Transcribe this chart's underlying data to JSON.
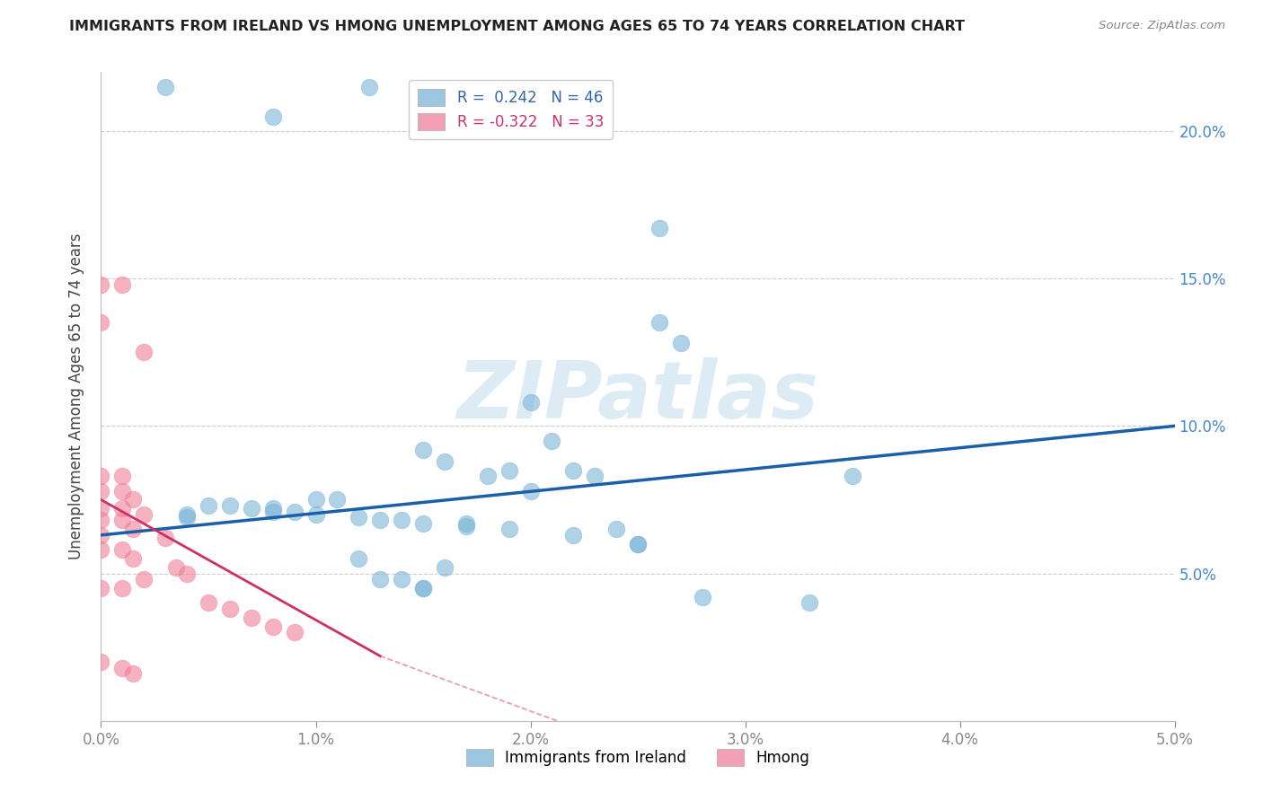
{
  "title": "IMMIGRANTS FROM IRELAND VS HMONG UNEMPLOYMENT AMONG AGES 65 TO 74 YEARS CORRELATION CHART",
  "source": "Source: ZipAtlas.com",
  "ylabel": "Unemployment Among Ages 65 to 74 years",
  "xlim": [
    0.0,
    0.05
  ],
  "ylim": [
    0.0,
    0.22
  ],
  "xticklabels": [
    "0.0%",
    "1.0%",
    "2.0%",
    "3.0%",
    "4.0%",
    "5.0%"
  ],
  "xticks": [
    0.0,
    0.01,
    0.02,
    0.03,
    0.04,
    0.05
  ],
  "ytick_vals": [
    0.05,
    0.1,
    0.15,
    0.2
  ],
  "yticks_right_labels": [
    "5.0%",
    "10.0%",
    "15.0%",
    "20.0%"
  ],
  "ireland_color": "#7ab4d8",
  "hmong_color": "#f08098",
  "ireland_scatter": [
    [
      0.003,
      0.215
    ],
    [
      0.008,
      0.205
    ],
    [
      0.0125,
      0.215
    ],
    [
      0.026,
      0.167
    ],
    [
      0.026,
      0.135
    ],
    [
      0.027,
      0.128
    ],
    [
      0.02,
      0.108
    ],
    [
      0.021,
      0.095
    ],
    [
      0.015,
      0.092
    ],
    [
      0.016,
      0.088
    ],
    [
      0.019,
      0.085
    ],
    [
      0.022,
      0.085
    ],
    [
      0.018,
      0.083
    ],
    [
      0.023,
      0.083
    ],
    [
      0.02,
      0.078
    ],
    [
      0.01,
      0.075
    ],
    [
      0.011,
      0.075
    ],
    [
      0.005,
      0.073
    ],
    [
      0.006,
      0.073
    ],
    [
      0.007,
      0.072
    ],
    [
      0.008,
      0.072
    ],
    [
      0.008,
      0.071
    ],
    [
      0.009,
      0.071
    ],
    [
      0.004,
      0.07
    ],
    [
      0.01,
      0.07
    ],
    [
      0.004,
      0.069
    ],
    [
      0.012,
      0.069
    ],
    [
      0.013,
      0.068
    ],
    [
      0.014,
      0.068
    ],
    [
      0.015,
      0.067
    ],
    [
      0.017,
      0.067
    ],
    [
      0.017,
      0.066
    ],
    [
      0.024,
      0.065
    ],
    [
      0.019,
      0.065
    ],
    [
      0.022,
      0.063
    ],
    [
      0.025,
      0.06
    ],
    [
      0.025,
      0.06
    ],
    [
      0.012,
      0.055
    ],
    [
      0.016,
      0.052
    ],
    [
      0.013,
      0.048
    ],
    [
      0.014,
      0.048
    ],
    [
      0.015,
      0.045
    ],
    [
      0.015,
      0.045
    ],
    [
      0.028,
      0.042
    ],
    [
      0.033,
      0.04
    ],
    [
      0.035,
      0.083
    ]
  ],
  "hmong_scatter": [
    [
      0.0,
      0.148
    ],
    [
      0.001,
      0.148
    ],
    [
      0.0,
      0.135
    ],
    [
      0.002,
      0.125
    ],
    [
      0.0,
      0.083
    ],
    [
      0.001,
      0.083
    ],
    [
      0.0,
      0.078
    ],
    [
      0.001,
      0.078
    ],
    [
      0.0015,
      0.075
    ],
    [
      0.0,
      0.072
    ],
    [
      0.001,
      0.072
    ],
    [
      0.002,
      0.07
    ],
    [
      0.0,
      0.068
    ],
    [
      0.001,
      0.068
    ],
    [
      0.0015,
      0.065
    ],
    [
      0.0,
      0.063
    ],
    [
      0.003,
      0.062
    ],
    [
      0.0,
      0.058
    ],
    [
      0.001,
      0.058
    ],
    [
      0.0015,
      0.055
    ],
    [
      0.0035,
      0.052
    ],
    [
      0.004,
      0.05
    ],
    [
      0.002,
      0.048
    ],
    [
      0.0,
      0.045
    ],
    [
      0.001,
      0.045
    ],
    [
      0.005,
      0.04
    ],
    [
      0.006,
      0.038
    ],
    [
      0.007,
      0.035
    ],
    [
      0.008,
      0.032
    ],
    [
      0.009,
      0.03
    ],
    [
      0.0,
      0.02
    ],
    [
      0.001,
      0.018
    ],
    [
      0.0015,
      0.016
    ]
  ],
  "ireland_trendline": {
    "x": [
      0.0,
      0.05
    ],
    "y": [
      0.063,
      0.1
    ]
  },
  "hmong_trendline_solid": {
    "x": [
      0.0,
      0.013
    ],
    "y": [
      0.075,
      0.022
    ]
  },
  "hmong_trendline_dashed": {
    "x": [
      0.013,
      0.025
    ],
    "y": [
      0.022,
      -0.01
    ]
  },
  "watermark": "ZIPatlas",
  "background_color": "#ffffff",
  "grid_color": "#cccccc",
  "ireland_trendline_color": "#1a5fa8",
  "hmong_trendline_color": "#d03060",
  "legend_ireland_color": "#9dc6e0",
  "legend_hmong_color": "#f4a0b4",
  "legend_ireland_label": "R =  0.242   N = 46",
  "legend_hmong_label": "R = -0.322   N = 33",
  "bottom_legend_ireland": "Immigrants from Ireland",
  "bottom_legend_hmong": "Hmong"
}
